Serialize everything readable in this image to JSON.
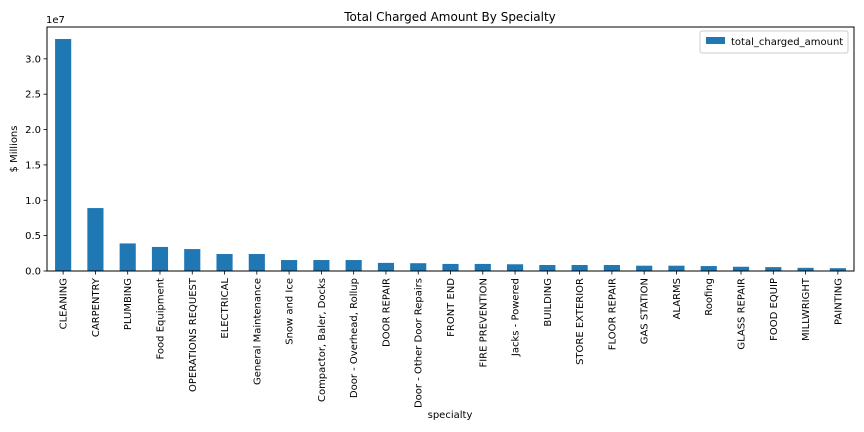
{
  "chart_data": {
    "type": "bar",
    "title": "Total Charged Amount By Specialty",
    "xlabel": "specialty",
    "ylabel": "$ Millions",
    "offset_text": "1e7",
    "ylim": [
      0,
      34500000
    ],
    "yticks": [
      0,
      5000000,
      10000000,
      15000000,
      20000000,
      25000000,
      30000000
    ],
    "ytick_labels": [
      "0.0",
      "0.5",
      "1.0",
      "1.5",
      "2.0",
      "2.5",
      "3.0"
    ],
    "grid": false,
    "legend_position": "top-right",
    "color": "#1f77b4",
    "categories": [
      "CLEANING",
      "CARPENTRY",
      "PLUMBING",
      "Food Equipment",
      "OPERATIONS REQUEST",
      "ELECTRICAL",
      "General Maintenance",
      "Snow and Ice",
      "Compactor, Baler, Docks",
      "Door - Overhead, Rollup",
      "DOOR REPAIR",
      "Door - Other Door Repairs",
      "FRONT END",
      "FIRE PREVENTION",
      "Jacks - Powered",
      "BUILDING",
      "STORE EXTERIOR",
      "FLOOR REPAIR",
      "GAS STATION",
      "ALARMS",
      "Roofing",
      "GLASS REPAIR",
      "FOOD EQUIP",
      "MILLWRIGHT",
      "PAINTING"
    ],
    "series": [
      {
        "name": "total_charged_amount",
        "values": [
          32800000,
          8900000,
          3900000,
          3400000,
          3100000,
          2400000,
          2400000,
          1550000,
          1550000,
          1550000,
          1150000,
          1100000,
          1000000,
          1000000,
          950000,
          850000,
          850000,
          850000,
          750000,
          750000,
          700000,
          600000,
          550000,
          450000,
          400000
        ]
      }
    ]
  }
}
